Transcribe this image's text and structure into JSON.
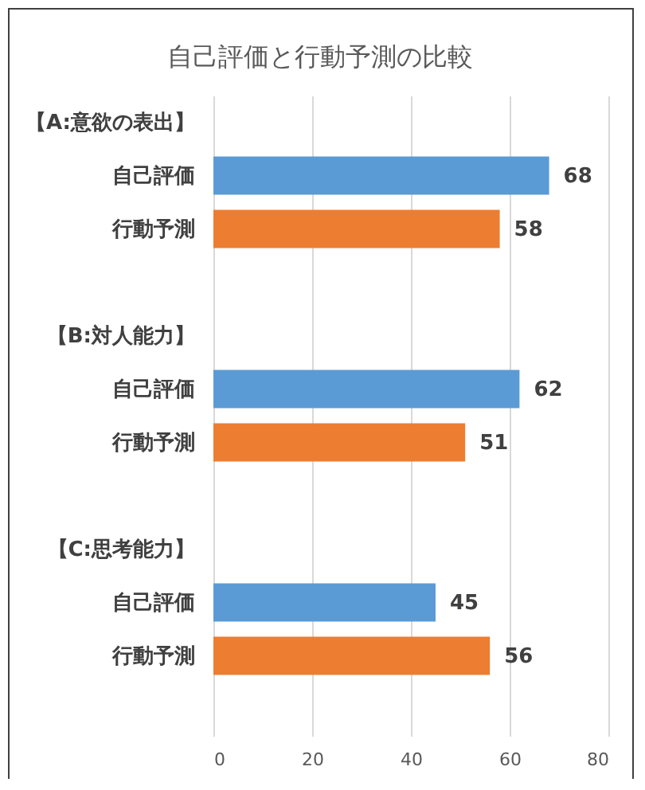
{
  "chart_data": {
    "type": "bar",
    "orientation": "horizontal",
    "title": "自己評価と行動予測の比較",
    "categories": [
      "【A:意欲の表出】",
      "自己評価",
      "行動予測",
      null,
      "【B:対人能力】",
      "自己評価",
      "行動予測",
      null,
      "【C:思考能力】",
      "自己評価",
      "行動予測",
      null
    ],
    "values": [
      null,
      68,
      58,
      null,
      null,
      62,
      51,
      null,
      null,
      45,
      56,
      null
    ],
    "colors": [
      null,
      "#5b9bd5",
      "#ed7d31",
      null,
      null,
      "#5b9bd5",
      "#ed7d31",
      null,
      null,
      "#5b9bd5",
      "#ed7d31",
      null
    ],
    "xlim": [
      0,
      80
    ],
    "xticks": [
      0,
      20,
      40,
      60,
      80
    ],
    "grid": "x",
    "data_labels": true
  }
}
